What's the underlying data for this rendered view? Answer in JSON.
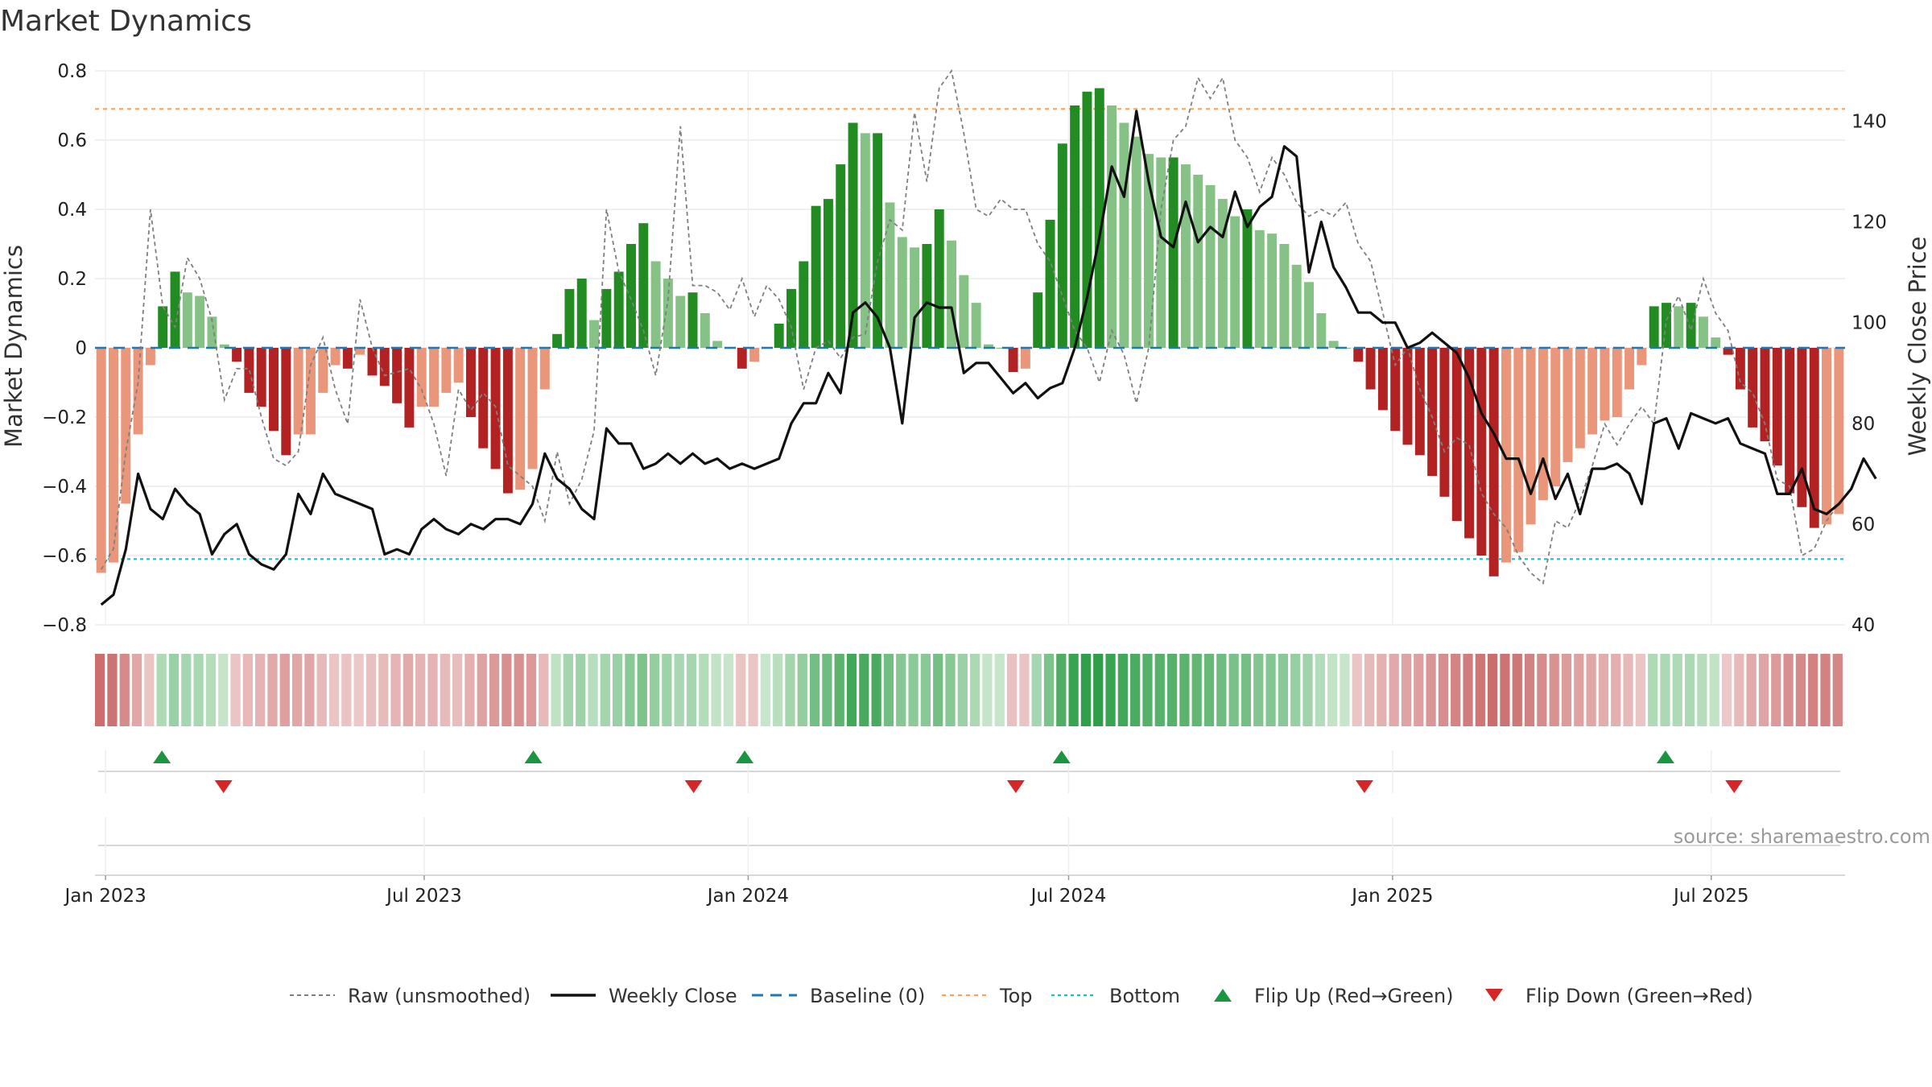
{
  "chart_data": {
    "type": "bar",
    "title": "Market Dynamics",
    "ylabel": "Market Dynamics",
    "y2label": "Weekly Close Price",
    "ylim": [
      -0.8,
      0.8
    ],
    "y2lim": [
      40,
      150
    ],
    "yticks": [
      "0.8",
      "0.6",
      "0.4",
      "0.2",
      "0",
      "−0.2",
      "−0.4",
      "−0.6",
      "−0.8"
    ],
    "y2ticks": [
      "140",
      "120",
      "100",
      "80",
      "60",
      "40"
    ],
    "x_start": "2022-12-26",
    "x_end": "2025-09-15",
    "xticks": [
      {
        "date": "2023-01-01",
        "label": "Jan 2023"
      },
      {
        "date": "2023-07-01",
        "label": "Jul 2023"
      },
      {
        "date": "2024-01-01",
        "label": "Jan 2024"
      },
      {
        "date": "2024-07-01",
        "label": "Jul 2024"
      },
      {
        "date": "2025-01-01",
        "label": "Jan 2025"
      },
      {
        "date": "2025-07-01",
        "label": "Jul 2025"
      }
    ],
    "top_level": 0.69,
    "bottom_level": -0.61,
    "raw": [
      -0.64,
      -0.58,
      -0.3,
      -0.1,
      0.4,
      0.12,
      0.06,
      0.26,
      0.2,
      0.08,
      -0.15,
      -0.06,
      -0.06,
      -0.2,
      -0.32,
      -0.34,
      -0.3,
      -0.05,
      0.03,
      -0.12,
      -0.22,
      0.14,
      0.0,
      -0.08,
      -0.07,
      -0.06,
      -0.12,
      -0.22,
      -0.37,
      -0.12,
      -0.18,
      -0.13,
      -0.17,
      -0.34,
      -0.37,
      -0.4,
      -0.5,
      -0.3,
      -0.45,
      -0.38,
      -0.24,
      0.4,
      0.22,
      0.14,
      0.05,
      -0.08,
      0.14,
      0.64,
      0.18,
      0.18,
      0.16,
      0.11,
      0.2,
      0.09,
      0.18,
      0.14,
      0.06,
      -0.12,
      0.0,
      0.02,
      -0.03,
      0.03,
      0.04,
      0.25,
      0.37,
      0.34,
      0.68,
      0.48,
      0.75,
      0.8,
      0.62,
      0.4,
      0.38,
      0.43,
      0.4,
      0.4,
      0.3,
      0.25,
      0.15,
      0.05,
      0.0,
      -0.1,
      0.05,
      -0.02,
      -0.16,
      0.0,
      0.4,
      0.6,
      0.64,
      0.78,
      0.72,
      0.78,
      0.6,
      0.55,
      0.45,
      0.55,
      0.5,
      0.42,
      0.38,
      0.4,
      0.38,
      0.42,
      0.3,
      0.25,
      0.1,
      -0.05,
      0.0,
      -0.12,
      -0.2,
      -0.3,
      -0.26,
      -0.28,
      -0.42,
      -0.48,
      -0.52,
      -0.6,
      -0.65,
      -0.68,
      -0.5,
      -0.52,
      -0.44,
      -0.34,
      -0.22,
      -0.28,
      -0.22,
      -0.17,
      -0.22,
      0.08,
      0.15,
      0.05,
      0.2,
      0.1,
      0.05,
      -0.1,
      -0.13,
      -0.22,
      -0.38,
      -0.4,
      -0.6,
      -0.58,
      -0.5,
      -0.45
    ],
    "series": [
      {
        "name": "Market Dynamics",
        "values": [
          -0.65,
          -0.62,
          -0.45,
          -0.25,
          -0.05,
          0.12,
          0.22,
          0.16,
          0.15,
          0.09,
          0.01,
          -0.04,
          -0.13,
          -0.17,
          -0.24,
          -0.31,
          -0.25,
          -0.25,
          -0.13,
          -0.05,
          -0.06,
          -0.02,
          -0.08,
          -0.11,
          -0.16,
          -0.23,
          -0.17,
          -0.17,
          -0.13,
          -0.1,
          -0.2,
          -0.29,
          -0.35,
          -0.42,
          -0.41,
          -0.35,
          -0.12,
          0.04,
          0.17,
          0.2,
          0.08,
          0.17,
          0.22,
          0.3,
          0.36,
          0.25,
          0.2,
          0.15,
          0.16,
          0.1,
          0.02,
          0.0,
          -0.06,
          -0.04,
          0.0,
          0.07,
          0.17,
          0.25,
          0.41,
          0.43,
          0.53,
          0.65,
          0.62,
          0.62,
          0.42,
          0.32,
          0.29,
          0.3,
          0.4,
          0.31,
          0.21,
          0.13,
          0.01,
          0.0,
          -0.07,
          -0.06,
          0.16,
          0.37,
          0.59,
          0.7,
          0.74,
          0.75,
          0.7,
          0.65,
          0.61,
          0.56,
          0.55,
          0.55,
          0.53,
          0.5,
          0.47,
          0.43,
          0.38,
          0.4,
          0.34,
          0.33,
          0.3,
          0.24,
          0.19,
          0.1,
          0.02,
          0.0,
          -0.04,
          -0.12,
          -0.18,
          -0.24,
          -0.28,
          -0.31,
          -0.37,
          -0.43,
          -0.5,
          -0.55,
          -0.6,
          -0.66,
          -0.62,
          -0.59,
          -0.51,
          -0.44,
          -0.4,
          -0.33,
          -0.29,
          -0.25,
          -0.21,
          -0.2,
          -0.12,
          -0.05,
          0.12,
          0.13,
          0.12,
          0.13,
          0.09,
          0.03,
          -0.02,
          -0.12,
          -0.23,
          -0.27,
          -0.34,
          -0.42,
          -0.46,
          -0.52,
          -0.51,
          -0.48
        ]
      },
      {
        "name": "Weekly Close",
        "values": [
          44,
          46,
          55,
          70,
          63,
          61,
          67,
          64,
          62,
          54,
          58,
          60,
          54,
          52,
          51,
          54,
          66,
          62,
          70,
          66,
          65,
          64,
          63,
          54,
          55,
          54,
          59,
          61,
          59,
          58,
          60,
          59,
          61,
          61,
          60,
          64,
          74,
          69,
          67,
          63,
          61,
          79,
          76,
          76,
          71,
          72,
          74,
          72,
          74,
          72,
          73,
          71,
          72,
          71,
          72,
          73,
          80,
          84,
          84,
          90,
          86,
          102,
          104,
          101,
          95,
          80,
          101,
          104,
          103,
          103,
          90,
          92,
          92,
          89,
          86,
          88,
          85,
          87,
          88,
          95,
          105,
          117,
          131,
          125,
          142,
          128,
          117,
          115,
          124,
          116,
          119,
          117,
          126,
          119,
          123,
          125,
          135,
          133,
          110,
          120,
          111,
          107,
          102,
          102,
          100,
          100,
          95,
          96,
          98,
          96,
          94,
          89,
          82,
          78,
          73,
          73,
          66,
          73,
          65,
          70,
          62,
          71,
          71,
          72,
          70,
          64,
          80,
          81,
          75,
          82,
          81,
          80,
          81,
          76,
          75,
          74,
          66,
          66,
          71,
          63,
          62,
          64,
          67,
          73,
          69
        ]
      }
    ],
    "flip_up_dates": [
      "2023-02-02",
      "2023-09-01",
      "2023-12-30",
      "2024-06-27",
      "2025-06-05"
    ],
    "flip_down_dates": [
      "2023-03-09",
      "2023-12-01",
      "2024-06-01",
      "2024-12-16",
      "2025-07-14"
    ],
    "legend_position": "bottom",
    "legend": [
      "Raw (unsmoothed)",
      "Weekly Close",
      "Baseline (0)",
      "Top",
      "Bottom",
      "Flip Up (Red→Green)",
      "Flip Down (Green→Red)"
    ],
    "source": "source: sharemaestro.com",
    "colors": {
      "strong_green": "#228b22",
      "light_green": "#86c286",
      "strong_red": "#b22222",
      "light_red": "#e9967a",
      "raw": "#7f7f7f",
      "close": "#111111",
      "baseline": "#1f77b4",
      "top": "#f4a460",
      "bottom": "#17becf",
      "flip_up": "#1a9641",
      "flip_down": "#d62728"
    }
  }
}
